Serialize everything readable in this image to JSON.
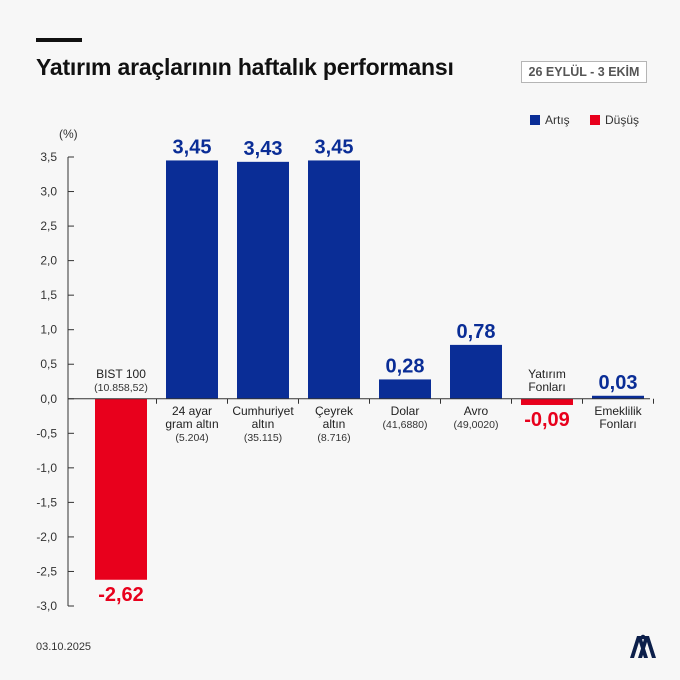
{
  "page": {
    "title": "Yatırım araçlarının haftalık performansı",
    "date_range": "26 EYLÜL - 3 EKİM",
    "footer_date": "03.10.2025",
    "logo_text": "AA"
  },
  "legend": [
    {
      "label": "Artış",
      "color": "#0a2d96"
    },
    {
      "label": "Düşüş",
      "color": "#e8001c"
    }
  ],
  "chart_data": {
    "type": "bar",
    "title": "Yatırım araçlarının haftalık performansı",
    "ylabel": "(%)",
    "ylim": [
      -3.0,
      3.5
    ],
    "yticks": [
      "3,5",
      "3,0",
      "2,5",
      "2,0",
      "1,5",
      "1,0",
      "0,5",
      "0,0",
      "-0,5",
      "-1,0",
      "-1,5",
      "-2,0",
      "-2,5",
      "-3,0"
    ],
    "ytick_values": [
      3.5,
      3.0,
      2.5,
      2.0,
      1.5,
      1.0,
      0.5,
      0.0,
      -0.5,
      -1.0,
      -1.5,
      -2.0,
      -2.5,
      -3.0
    ],
    "categories": [
      {
        "name": [
          "BIST 100"
        ],
        "sub": "(10.858,52)"
      },
      {
        "name": [
          "24 ayar",
          "gram altın"
        ],
        "sub": "(5.204)"
      },
      {
        "name": [
          "Cumhuriyet",
          "altın"
        ],
        "sub": "(35.115)"
      },
      {
        "name": [
          "Çeyrek",
          "altın"
        ],
        "sub": "(8.716)"
      },
      {
        "name": [
          "Dolar"
        ],
        "sub": "(41,6880)"
      },
      {
        "name": [
          "Avro"
        ],
        "sub": "(49,0020)"
      },
      {
        "name": [
          "Yatırım",
          "Fonları"
        ],
        "sub": ""
      },
      {
        "name": [
          "Emeklilik",
          "Fonları"
        ],
        "sub": ""
      }
    ],
    "values": [
      -2.62,
      3.45,
      3.43,
      3.45,
      0.28,
      0.78,
      -0.09,
      0.03
    ],
    "value_labels": [
      "-2,62",
      "3,45",
      "3,43",
      "3,45",
      "0,28",
      "0,78",
      "-0,09",
      "0,03"
    ],
    "colors": {
      "positive": "#0a2d96",
      "negative": "#e8001c"
    },
    "grid": false,
    "legend_position": "top-right"
  }
}
